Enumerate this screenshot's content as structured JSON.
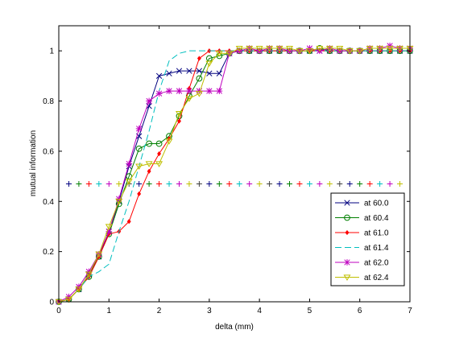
{
  "chart_data": {
    "type": "line",
    "title": "",
    "xlabel": "delta (mm)",
    "ylabel": "mutual information",
    "xlim": [
      0,
      7
    ],
    "ylim": [
      0,
      1.1
    ],
    "xticks": [
      0,
      1,
      2,
      3,
      4,
      5,
      6,
      7
    ],
    "yticks": [
      0,
      0.2,
      0.4,
      0.6,
      0.8,
      1
    ],
    "grid": false,
    "legend_position": "bottom-right",
    "x": [
      0,
      0.2,
      0.4,
      0.6,
      0.8,
      1.0,
      1.2,
      1.4,
      1.6,
      1.8,
      2.0,
      2.2,
      2.4,
      2.6,
      2.8,
      3.0,
      3.2,
      3.4,
      3.6,
      3.8,
      4.0,
      4.2,
      4.4,
      4.6,
      4.8,
      5.0,
      5.2,
      5.4,
      5.6,
      5.8,
      6.0,
      6.2,
      6.4,
      6.6,
      6.8,
      7.0
    ],
    "series": [
      {
        "name": "at 60.0",
        "color": "#00007f",
        "marker": "x",
        "dash": "",
        "values": [
          0,
          0.01,
          0.05,
          0.11,
          0.18,
          0.28,
          0.4,
          0.54,
          0.66,
          0.78,
          0.9,
          0.91,
          0.92,
          0.92,
          0.92,
          0.91,
          0.91,
          0.99,
          1.0,
          1.0,
          1.0,
          1.0,
          1.0,
          1.0,
          1.0,
          1.0,
          1.0,
          1.0,
          1.0,
          1.0,
          1.0,
          1.0,
          1.0,
          1.0,
          1.0,
          1.0
        ]
      },
      {
        "name": "at 60.4",
        "color": "#007f00",
        "marker": "o",
        "dash": "",
        "values": [
          0,
          0.01,
          0.05,
          0.1,
          0.18,
          0.27,
          0.39,
          0.5,
          0.61,
          0.63,
          0.63,
          0.66,
          0.74,
          0.82,
          0.89,
          0.97,
          0.98,
          0.99,
          1.0,
          1.0,
          1.0,
          1.0,
          1.0,
          1.0,
          1.0,
          1.0,
          1.01,
          1.0,
          1.0,
          1.0,
          1.0,
          1.0,
          1.0,
          1.0,
          1.0,
          1.0
        ]
      },
      {
        "name": "at 61.0",
        "color": "#ff0000",
        "marker": "dot",
        "dash": "",
        "values": [
          0,
          0.01,
          0.05,
          0.1,
          0.18,
          0.27,
          0.28,
          0.32,
          0.43,
          0.52,
          0.59,
          0.65,
          0.72,
          0.85,
          0.97,
          1.0,
          1.0,
          1.0,
          1.0,
          1.0,
          1.0,
          1.0,
          1.0,
          1.0,
          1.0,
          1.0,
          1.0,
          1.0,
          1.0,
          1.0,
          1.0,
          1.0,
          1.0,
          1.0,
          1.0,
          1.0
        ]
      },
      {
        "name": "at 61.4",
        "color": "#00bfbf",
        "marker": "none",
        "dash": "8,4",
        "values": [
          0,
          0.01,
          0.05,
          0.1,
          0.12,
          0.15,
          0.28,
          0.4,
          0.54,
          0.68,
          0.84,
          0.96,
          0.99,
          1.0,
          1.0,
          1.0,
          1.0,
          1.0,
          1.0,
          1.0,
          1.0,
          1.0,
          1.0,
          1.0,
          1.0,
          1.0,
          1.0,
          1.0,
          1.0,
          1.0,
          1.0,
          1.0,
          1.0,
          1.0,
          1.0,
          1.0
        ]
      },
      {
        "name": "at 62.0",
        "color": "#bf00bf",
        "marker": "star",
        "dash": "",
        "values": [
          0,
          0.02,
          0.06,
          0.12,
          0.19,
          0.28,
          0.41,
          0.55,
          0.69,
          0.8,
          0.83,
          0.84,
          0.84,
          0.84,
          0.84,
          0.84,
          0.84,
          0.99,
          1.0,
          1.01,
          1.0,
          1.01,
          1.01,
          1.0,
          1.0,
          1.01,
          1.0,
          1.01,
          1.0,
          1.0,
          1.0,
          1.01,
          1.01,
          1.02,
          1.01,
          1.01
        ]
      },
      {
        "name": "at 62.4",
        "color": "#bfbf00",
        "marker": "triangle",
        "dash": "",
        "values": [
          0,
          0.01,
          0.05,
          0.11,
          0.19,
          0.3,
          0.4,
          0.48,
          0.54,
          0.55,
          0.55,
          0.64,
          0.75,
          0.81,
          0.83,
          0.95,
          0.99,
          0.99,
          1.01,
          1.01,
          1.01,
          1.01,
          1.01,
          1.01,
          1.0,
          1.0,
          1.01,
          1.01,
          1.01,
          1.0,
          1.0,
          1.01,
          1.01,
          1.01,
          1.01,
          1.01
        ]
      }
    ],
    "reference_line": {
      "y": 0.47,
      "x": [
        0.2,
        0.4,
        0.6,
        0.8,
        1.0,
        1.2,
        1.4,
        1.6,
        1.8,
        2.0,
        2.2,
        2.4,
        2.6,
        2.8,
        3.0,
        3.2,
        3.4,
        3.6,
        3.8,
        4.0,
        4.2,
        4.4,
        4.6,
        4.8,
        5.0,
        5.2,
        5.4,
        5.6,
        5.8,
        6.0,
        6.2,
        6.4,
        6.6,
        6.8
      ],
      "marker": "+",
      "colors": [
        "#00007f",
        "#007f00",
        "#ff0000",
        "#00bfbf",
        "#bf00bf",
        "#bfbf00",
        "#404040"
      ]
    }
  }
}
